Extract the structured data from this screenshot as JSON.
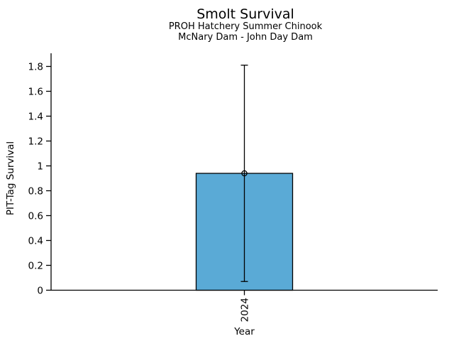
{
  "chart_data": {
    "type": "bar",
    "title": "Smolt Survival",
    "subtitle_line1": "PROH Hatchery Summer Chinook",
    "subtitle_line2": "McNary Dam - John Day Dam",
    "xlabel": "Year",
    "ylabel": "PIT-Tag Survival",
    "categories": [
      "2024"
    ],
    "values": [
      0.94
    ],
    "error_low": [
      0.07
    ],
    "error_high": [
      1.81
    ],
    "yticks": [
      0,
      0.2,
      0.4,
      0.6,
      0.8,
      1,
      1.2,
      1.4,
      1.6,
      1.8
    ],
    "ylim": [
      0,
      1.9
    ],
    "grid": false,
    "legend_position": "none",
    "marker": "open-circle",
    "x_tick_rotation_deg": -90,
    "colors": {
      "bar_fill": "#5AAAD6",
      "bar_edge": "#000000",
      "error_bar": "#000000",
      "marker_edge": "#000000",
      "axis": "#000000",
      "background": "#FFFFFF"
    }
  }
}
